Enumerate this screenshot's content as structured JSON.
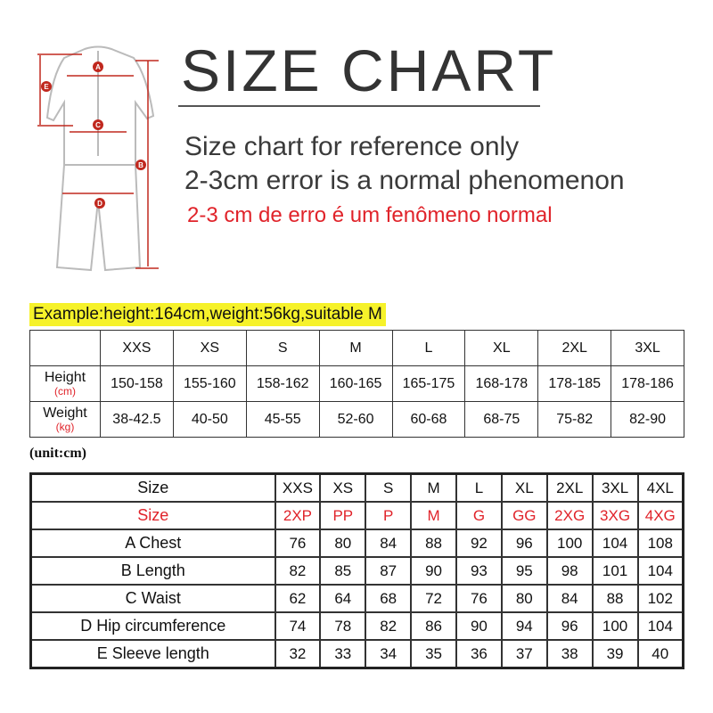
{
  "title": "SIZE CHART",
  "notes": [
    "Size chart for reference only",
    "2-3cm error is a normal phenomenon",
    "2-3 cm de erro é um fenômeno normal"
  ],
  "figure": {
    "markers": [
      "A",
      "B",
      "C",
      "D",
      "E"
    ],
    "accent": "#c0281e"
  },
  "example": "Example:height:164cm,weight:56kg,suitable M",
  "table1": {
    "sizes": [
      "XXS",
      "XS",
      "S",
      "M",
      "L",
      "XL",
      "2XL",
      "3XL"
    ],
    "rows": [
      {
        "label": "Height",
        "unit": "(cm)",
        "values": [
          "150-158",
          "155-160",
          "158-162",
          "160-165",
          "165-175",
          "168-178",
          "178-185",
          "178-186"
        ]
      },
      {
        "label": "Weight",
        "unit": "(kg)",
        "values": [
          "38-42.5",
          "40-50",
          "45-55",
          "52-60",
          "60-68",
          "68-75",
          "75-82",
          "82-90"
        ]
      }
    ]
  },
  "unit_label": "(unit:cm)",
  "table2": {
    "rows": [
      {
        "label": "Size",
        "red": false,
        "values": [
          "XXS",
          "XS",
          "S",
          "M",
          "L",
          "XL",
          "2XL",
          "3XL",
          "4XL"
        ]
      },
      {
        "label": "Size",
        "red": true,
        "values": [
          "2XP",
          "PP",
          "P",
          "M",
          "G",
          "GG",
          "2XG",
          "3XG",
          "4XG"
        ]
      },
      {
        "label": "A  Chest",
        "values": [
          "76",
          "80",
          "84",
          "88",
          "92",
          "96",
          "100",
          "104",
          "108"
        ]
      },
      {
        "label": "B  Length",
        "values": [
          "82",
          "85",
          "87",
          "90",
          "93",
          "95",
          "98",
          "101",
          "104"
        ]
      },
      {
        "label": "C  Waist",
        "values": [
          "62",
          "64",
          "68",
          "72",
          "76",
          "80",
          "84",
          "88",
          "102"
        ]
      },
      {
        "label": "D  Hip circumference",
        "values": [
          "74",
          "78",
          "82",
          "86",
          "90",
          "94",
          "96",
          "100",
          "104"
        ]
      },
      {
        "label": "E  Sleeve length",
        "values": [
          "32",
          "33",
          "34",
          "35",
          "36",
          "37",
          "38",
          "39",
          "40"
        ]
      }
    ]
  },
  "colors": {
    "red": "#e0232a",
    "highlight": "#f6f22a"
  }
}
